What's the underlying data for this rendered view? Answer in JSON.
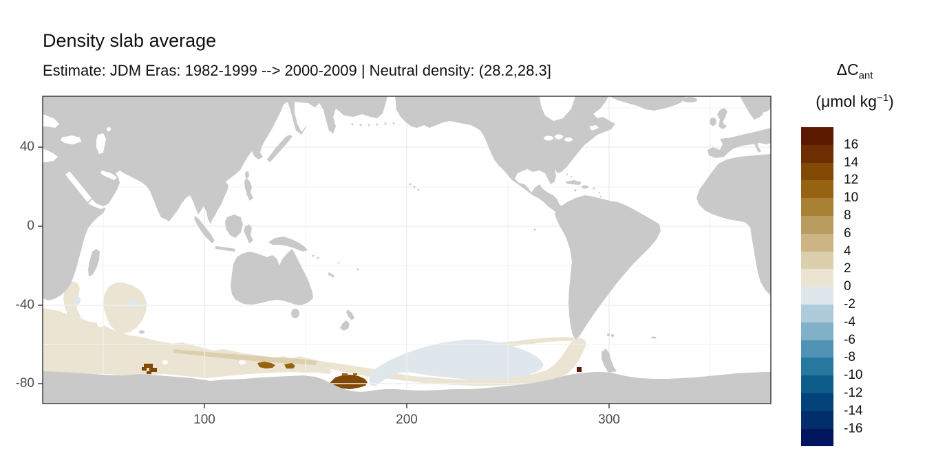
{
  "title": "Density slab average",
  "subtitle": "Estimate: JDM Eras: 1982-1999 --> 2000-2009 | Neutral density: (28.2,28.3]",
  "legend": {
    "title_main": "ΔC",
    "title_sub": "ant",
    "units_prefix": "(μmol kg",
    "units_sup": "−1",
    "units_suffix": ")",
    "labels": [
      "16",
      "14",
      "12",
      "10",
      "8",
      "6",
      "4",
      "2",
      "0",
      "-2",
      "-4",
      "-6",
      "-8",
      "-10",
      "-12",
      "-14",
      "-16"
    ],
    "colors": [
      "#5b1a00",
      "#6e2e01",
      "#814902",
      "#966310",
      "#a98134",
      "#bb9c60",
      "#ccb485",
      "#dccfad",
      "#ece4d3",
      "#dfe7ec",
      "#aecbdc",
      "#80b1c9",
      "#5093b4",
      "#27789f",
      "#0d5d8b",
      "#03437a",
      "#022e6c",
      "#01145e"
    ]
  },
  "axes": {
    "x_ticks": [
      "100",
      "200",
      "300"
    ],
    "y_ticks": [
      "40",
      "0",
      "-40",
      "-80"
    ]
  },
  "colors": {
    "land": "#c9c9c9",
    "ocean": "#ffffff",
    "grid_major": "#efefef",
    "grid_minor": "#f2f2f2",
    "axis_text": "#4d4d4d",
    "axis_line": "#333333"
  },
  "chart_data": {
    "type": "heatmap",
    "subtype": "geographic-raster-map",
    "projection": "equirectangular",
    "title": "Density slab average",
    "subtitle": "Estimate: JDM Eras: 1982-1999 --> 2000-2009 | Neutral density: (28.2,28.3]",
    "legend_title": "ΔC_ant (μmol kg^-1)",
    "x_range": [
      20,
      380
    ],
    "y_range": [
      -90,
      66
    ],
    "x_ticks": [
      100,
      200,
      300
    ],
    "y_ticks": [
      40,
      0,
      -40,
      -80
    ],
    "grid": "major and minor, pale gray, hidden under land",
    "legend_position": "right",
    "value_bins": {
      "min": -18,
      "max": 18,
      "step": 2,
      "boundary_labels": [
        16,
        14,
        12,
        10,
        8,
        6,
        4,
        2,
        0,
        -2,
        -4,
        -6,
        -8,
        -10,
        -12,
        -14,
        -16
      ]
    },
    "palette_top_to_bottom": [
      "#5b1a00",
      "#6e2e01",
      "#814902",
      "#966310",
      "#a98134",
      "#bb9c60",
      "#ccb485",
      "#dccfad",
      "#ece4d3",
      "#dfe7ec",
      "#aecbdc",
      "#80b1c9",
      "#5093b4",
      "#27789f",
      "#0d5d8b",
      "#03437a",
      "#022e6c",
      "#01145e"
    ],
    "regions": [
      {
        "name": "south-indian-ocean-beige-band",
        "lon": [
          20,
          162
        ],
        "lat": [
          -70,
          -28
        ],
        "value_range": [
          0,
          2
        ]
      },
      {
        "name": "mid-band-darker-tan-strip",
        "lon": [
          85,
          155
        ],
        "lat": [
          -68,
          -62
        ],
        "value_range": [
          2,
          4
        ]
      },
      {
        "name": "beige-fringe-north-of-pacific-patch",
        "lon": [
          230,
          285
        ],
        "lat": [
          -66,
          -60
        ],
        "value_range": [
          0,
          2
        ]
      },
      {
        "name": "pacific-sector-pale-blue-lens",
        "lon": [
          182,
          270
        ],
        "lat": [
          -78,
          -56
        ],
        "value_range": [
          -2,
          0
        ]
      },
      {
        "name": "ross-sea-brown-blob",
        "lon": [
          162,
          181
        ],
        "lat": [
          -78,
          -72
        ],
        "value_range": [
          12,
          14
        ]
      },
      {
        "name": "east-antarctic-brown-spot-70E",
        "lon": [
          69,
          77
        ],
        "lat": [
          -72,
          -66
        ],
        "value_range": [
          12,
          14
        ]
      },
      {
        "name": "east-antarctic-golden-spot-127E",
        "lon": [
          126,
          135
        ],
        "lat": [
          -67,
          -63
        ],
        "value_range": [
          10,
          12
        ]
      },
      {
        "name": "east-antarctic-golden-spot-140E",
        "lon": [
          139,
          146
        ],
        "lat": [
          -67,
          -64
        ],
        "value_range": [
          10,
          12
        ]
      },
      {
        "name": "bellingshausen-maroon-dot",
        "lon": [
          283,
          286
        ],
        "lat": [
          -74,
          -71
        ],
        "value_range": [
          16,
          18
        ]
      },
      {
        "name": "chile-coast-beige-hook",
        "lon": [
          272,
          287
        ],
        "lat": [
          -65,
          -49
        ],
        "value_range": [
          0,
          2
        ]
      },
      {
        "name": "small-blue-patch-38E",
        "lon": [
          35,
          40
        ],
        "lat": [
          -43,
          -37
        ],
        "value_range": [
          -2,
          0
        ]
      },
      {
        "name": "small-blue-patch-64E",
        "lon": [
          62,
          68
        ],
        "lat": [
          -40,
          -36
        ],
        "value_range": [
          -2,
          0
        ]
      }
    ]
  }
}
